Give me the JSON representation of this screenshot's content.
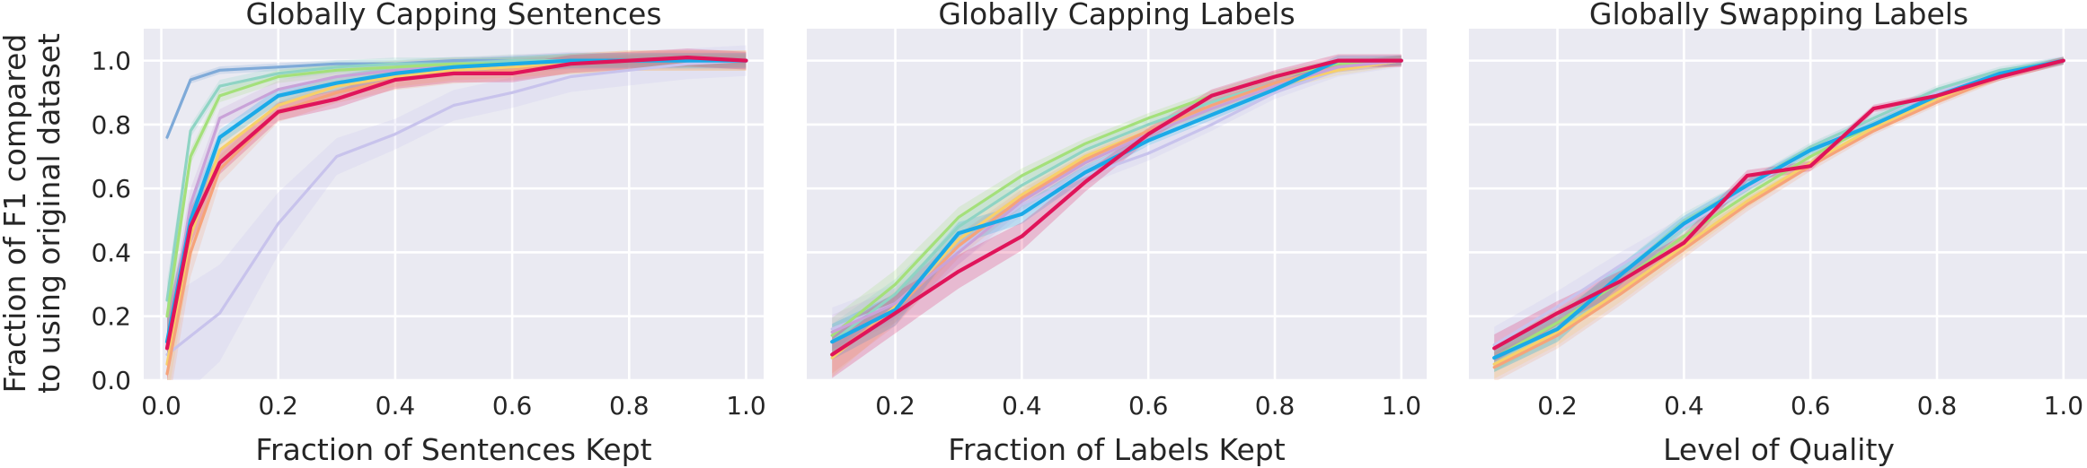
{
  "figure": {
    "ylabel_line1": "Fraction of F1 compared",
    "ylabel_line2": "to using original dataset"
  },
  "chart_data": [
    {
      "type": "line",
      "title": "Globally Capping Sentences",
      "xlabel": "Fraction of Sentences Kept",
      "ylabel": "Fraction of F1 compared to using original dataset",
      "xlim": [
        -0.03,
        1.03
      ],
      "ylim": [
        0,
        1.1
      ],
      "xticks": [
        "0.0",
        "0.2",
        "0.4",
        "0.6",
        "0.8",
        "1.0"
      ],
      "yticks": [
        "0.0",
        "0.2",
        "0.4",
        "0.6",
        "0.8",
        "1.0"
      ],
      "grid": true,
      "series": [
        {
          "color": "#C8C3EC",
          "x": [
            0.01,
            0.1,
            0.2,
            0.3,
            0.4,
            0.5,
            0.6,
            0.7,
            0.8,
            0.9,
            1.0
          ],
          "y": [
            0.08,
            0.21,
            0.49,
            0.7,
            0.77,
            0.86,
            0.9,
            0.95,
            0.97,
            0.99,
            1.0
          ],
          "band": 0.12
        },
        {
          "color": "#7FAAD8",
          "x": [
            0.01,
            0.05,
            0.1,
            0.2,
            0.3,
            0.4,
            0.5,
            0.6,
            0.7,
            0.8,
            0.9,
            1.0
          ],
          "y": [
            0.76,
            0.94,
            0.97,
            0.98,
            0.99,
            0.99,
            1.0,
            1.0,
            1.0,
            1.0,
            1.0,
            1.0
          ],
          "band": 0.03
        },
        {
          "color": "#8FD4C4",
          "x": [
            0.01,
            0.05,
            0.1,
            0.2,
            0.3,
            0.4,
            0.5,
            0.6,
            0.7,
            0.8,
            0.9,
            1.0
          ],
          "y": [
            0.25,
            0.78,
            0.92,
            0.96,
            0.98,
            0.99,
            0.99,
            1.0,
            1.0,
            1.0,
            1.0,
            1.0
          ],
          "band": 0.05
        },
        {
          "color": "#A4E07A",
          "x": [
            0.01,
            0.05,
            0.1,
            0.2,
            0.3,
            0.4,
            0.5,
            0.6,
            0.7,
            0.8,
            0.9,
            1.0
          ],
          "y": [
            0.2,
            0.7,
            0.89,
            0.95,
            0.97,
            0.98,
            0.99,
            0.99,
            1.0,
            1.0,
            1.0,
            1.0
          ],
          "band": 0.05
        },
        {
          "color": "#C9A2D8",
          "x": [
            0.01,
            0.05,
            0.1,
            0.2,
            0.3,
            0.4,
            0.5,
            0.6,
            0.7,
            0.8,
            0.9,
            1.0
          ],
          "y": [
            0.1,
            0.55,
            0.82,
            0.91,
            0.95,
            0.97,
            0.98,
            0.99,
            1.0,
            1.0,
            1.0,
            1.0
          ],
          "band": 0.07
        },
        {
          "color": "#F7D06A",
          "x": [
            0.01,
            0.05,
            0.1,
            0.2,
            0.3,
            0.4,
            0.5,
            0.6,
            0.7,
            0.8,
            0.9,
            1.0
          ],
          "y": [
            0.05,
            0.45,
            0.72,
            0.86,
            0.92,
            0.95,
            0.97,
            0.98,
            0.99,
            1.0,
            1.0,
            1.0
          ],
          "band": 0.08
        },
        {
          "color": "#F6A37A",
          "x": [
            0.01,
            0.05,
            0.1,
            0.2,
            0.3,
            0.4,
            0.5,
            0.6,
            0.7,
            0.8,
            0.9,
            1.0
          ],
          "y": [
            0.02,
            0.4,
            0.66,
            0.84,
            0.9,
            0.94,
            0.96,
            0.97,
            0.99,
            1.0,
            1.0,
            1.0
          ],
          "band": 0.08
        },
        {
          "color": "#1AAAE8",
          "x": [
            0.01,
            0.05,
            0.1,
            0.2,
            0.3,
            0.4,
            0.5,
            0.6,
            0.7,
            0.8,
            0.9,
            1.0
          ],
          "y": [
            0.12,
            0.5,
            0.76,
            0.89,
            0.93,
            0.96,
            0.98,
            0.99,
            1.0,
            1.0,
            1.0,
            1.0
          ],
          "band": 0.06
        },
        {
          "color": "#E0145A",
          "x": [
            0.01,
            0.05,
            0.1,
            0.2,
            0.3,
            0.4,
            0.5,
            0.6,
            0.7,
            0.8,
            0.9,
            1.0
          ],
          "y": [
            0.1,
            0.48,
            0.68,
            0.84,
            0.88,
            0.94,
            0.96,
            0.96,
            0.99,
            1.0,
            1.01,
            1.0
          ],
          "band": 0.07
        }
      ]
    },
    {
      "type": "line",
      "title": "Globally Capping Labels",
      "xlabel": "Fraction of Labels Kept",
      "ylabel": "",
      "xlim": [
        0.06,
        1.04
      ],
      "ylim": [
        0,
        1.1
      ],
      "xticks": [
        "0.2",
        "0.4",
        "0.6",
        "0.8",
        "1.0"
      ],
      "yticks": [],
      "grid": true,
      "series": [
        {
          "color": "#C8C3EC",
          "x": [
            0.1,
            0.2,
            0.3,
            0.4,
            0.5,
            0.6,
            0.7,
            0.8,
            0.9,
            1.0
          ],
          "y": [
            0.16,
            0.24,
            0.41,
            0.55,
            0.64,
            0.71,
            0.8,
            0.9,
            0.97,
            1.0
          ],
          "band": 0.05
        },
        {
          "color": "#A4E07A",
          "x": [
            0.1,
            0.2,
            0.3,
            0.4,
            0.5,
            0.6,
            0.7,
            0.8,
            0.9,
            1.0
          ],
          "y": [
            0.14,
            0.3,
            0.51,
            0.64,
            0.74,
            0.82,
            0.89,
            0.95,
            0.99,
            1.0
          ],
          "band": 0.04
        },
        {
          "color": "#8FD4C4",
          "x": [
            0.1,
            0.2,
            0.3,
            0.4,
            0.5,
            0.6,
            0.7,
            0.8,
            0.9,
            1.0
          ],
          "y": [
            0.12,
            0.27,
            0.48,
            0.61,
            0.72,
            0.8,
            0.87,
            0.93,
            0.98,
            1.0
          ],
          "band": 0.04
        },
        {
          "color": "#F7D06A",
          "x": [
            0.1,
            0.2,
            0.3,
            0.4,
            0.5,
            0.6,
            0.7,
            0.8,
            0.9,
            1.0
          ],
          "y": [
            0.07,
            0.23,
            0.44,
            0.58,
            0.7,
            0.78,
            0.85,
            0.92,
            0.97,
            1.0
          ],
          "band": 0.04
        },
        {
          "color": "#F6A37A",
          "x": [
            0.1,
            0.2,
            0.3,
            0.4,
            0.5,
            0.6,
            0.7,
            0.8,
            0.9,
            1.0
          ],
          "y": [
            0.08,
            0.22,
            0.42,
            0.57,
            0.69,
            0.78,
            0.86,
            0.93,
            0.98,
            1.0
          ],
          "band": 0.04
        },
        {
          "color": "#C9A2D8",
          "x": [
            0.1,
            0.2,
            0.3,
            0.4,
            0.5,
            0.6,
            0.7,
            0.8,
            0.9,
            1.0
          ],
          "y": [
            0.15,
            0.24,
            0.4,
            0.56,
            0.68,
            0.77,
            0.85,
            0.92,
            0.98,
            1.0
          ],
          "band": 0.04
        },
        {
          "color": "#1AAAE8",
          "x": [
            0.1,
            0.2,
            0.3,
            0.4,
            0.5,
            0.6,
            0.7,
            0.8,
            0.9,
            1.0
          ],
          "y": [
            0.12,
            0.22,
            0.46,
            0.52,
            0.65,
            0.75,
            0.83,
            0.91,
            1.0,
            1.0
          ],
          "band": 0.04
        },
        {
          "color": "#E0145A",
          "x": [
            0.1,
            0.2,
            0.3,
            0.4,
            0.5,
            0.6,
            0.7,
            0.8,
            0.9,
            1.0
          ],
          "y": [
            0.08,
            0.21,
            0.34,
            0.45,
            0.62,
            0.77,
            0.89,
            0.95,
            1.0,
            1.0
          ],
          "band": 0.05
        }
      ]
    },
    {
      "type": "line",
      "title": "Globally Swapping Labels",
      "xlabel": "Level of Quality",
      "ylabel": "",
      "xlim": [
        0.06,
        1.04
      ],
      "ylim": [
        0,
        1.1
      ],
      "xticks": [
        "0.2",
        "0.4",
        "0.6",
        "0.8",
        "1.0"
      ],
      "yticks": [],
      "grid": true,
      "series": [
        {
          "color": "#C8C3EC",
          "x": [
            0.1,
            0.2,
            0.3,
            0.4,
            0.5,
            0.6,
            0.7,
            0.8,
            0.9,
            1.0
          ],
          "y": [
            0.11,
            0.23,
            0.36,
            0.48,
            0.6,
            0.72,
            0.82,
            0.9,
            0.96,
            1.0
          ],
          "band": 0.04
        },
        {
          "color": "#A4E07A",
          "x": [
            0.1,
            0.2,
            0.3,
            0.4,
            0.5,
            0.6,
            0.7,
            0.8,
            0.9,
            1.0
          ],
          "y": [
            0.07,
            0.18,
            0.31,
            0.45,
            0.58,
            0.7,
            0.8,
            0.89,
            0.96,
            1.0
          ],
          "band": 0.03
        },
        {
          "color": "#F7D06A",
          "x": [
            0.1,
            0.2,
            0.3,
            0.4,
            0.5,
            0.6,
            0.7,
            0.8,
            0.9,
            1.0
          ],
          "y": [
            0.05,
            0.15,
            0.28,
            0.42,
            0.56,
            0.68,
            0.79,
            0.88,
            0.95,
            1.0
          ],
          "band": 0.03
        },
        {
          "color": "#F6A37A",
          "x": [
            0.1,
            0.2,
            0.3,
            0.4,
            0.5,
            0.6,
            0.7,
            0.8,
            0.9,
            1.0
          ],
          "y": [
            0.04,
            0.14,
            0.27,
            0.41,
            0.55,
            0.67,
            0.78,
            0.87,
            0.95,
            1.0
          ],
          "band": 0.03
        },
        {
          "color": "#8FD4C4",
          "x": [
            0.1,
            0.2,
            0.3,
            0.4,
            0.5,
            0.6,
            0.7,
            0.8,
            0.9,
            1.0
          ],
          "y": [
            0.07,
            0.16,
            0.33,
            0.5,
            0.61,
            0.73,
            0.82,
            0.91,
            0.97,
            1.0
          ],
          "band": 0.03
        },
        {
          "color": "#1AAAE8",
          "x": [
            0.1,
            0.2,
            0.3,
            0.4,
            0.5,
            0.6,
            0.7,
            0.8,
            0.9,
            1.0
          ],
          "y": [
            0.07,
            0.16,
            0.33,
            0.49,
            0.61,
            0.72,
            0.8,
            0.89,
            0.96,
            1.0
          ],
          "band": 0.03
        },
        {
          "color": "#E0145A",
          "x": [
            0.1,
            0.2,
            0.3,
            0.4,
            0.5,
            0.6,
            0.7,
            0.8,
            0.9,
            1.0
          ],
          "y": [
            0.1,
            0.21,
            0.31,
            0.43,
            0.64,
            0.67,
            0.85,
            0.89,
            0.95,
            1.0
          ],
          "band": 0.03
        }
      ]
    }
  ]
}
